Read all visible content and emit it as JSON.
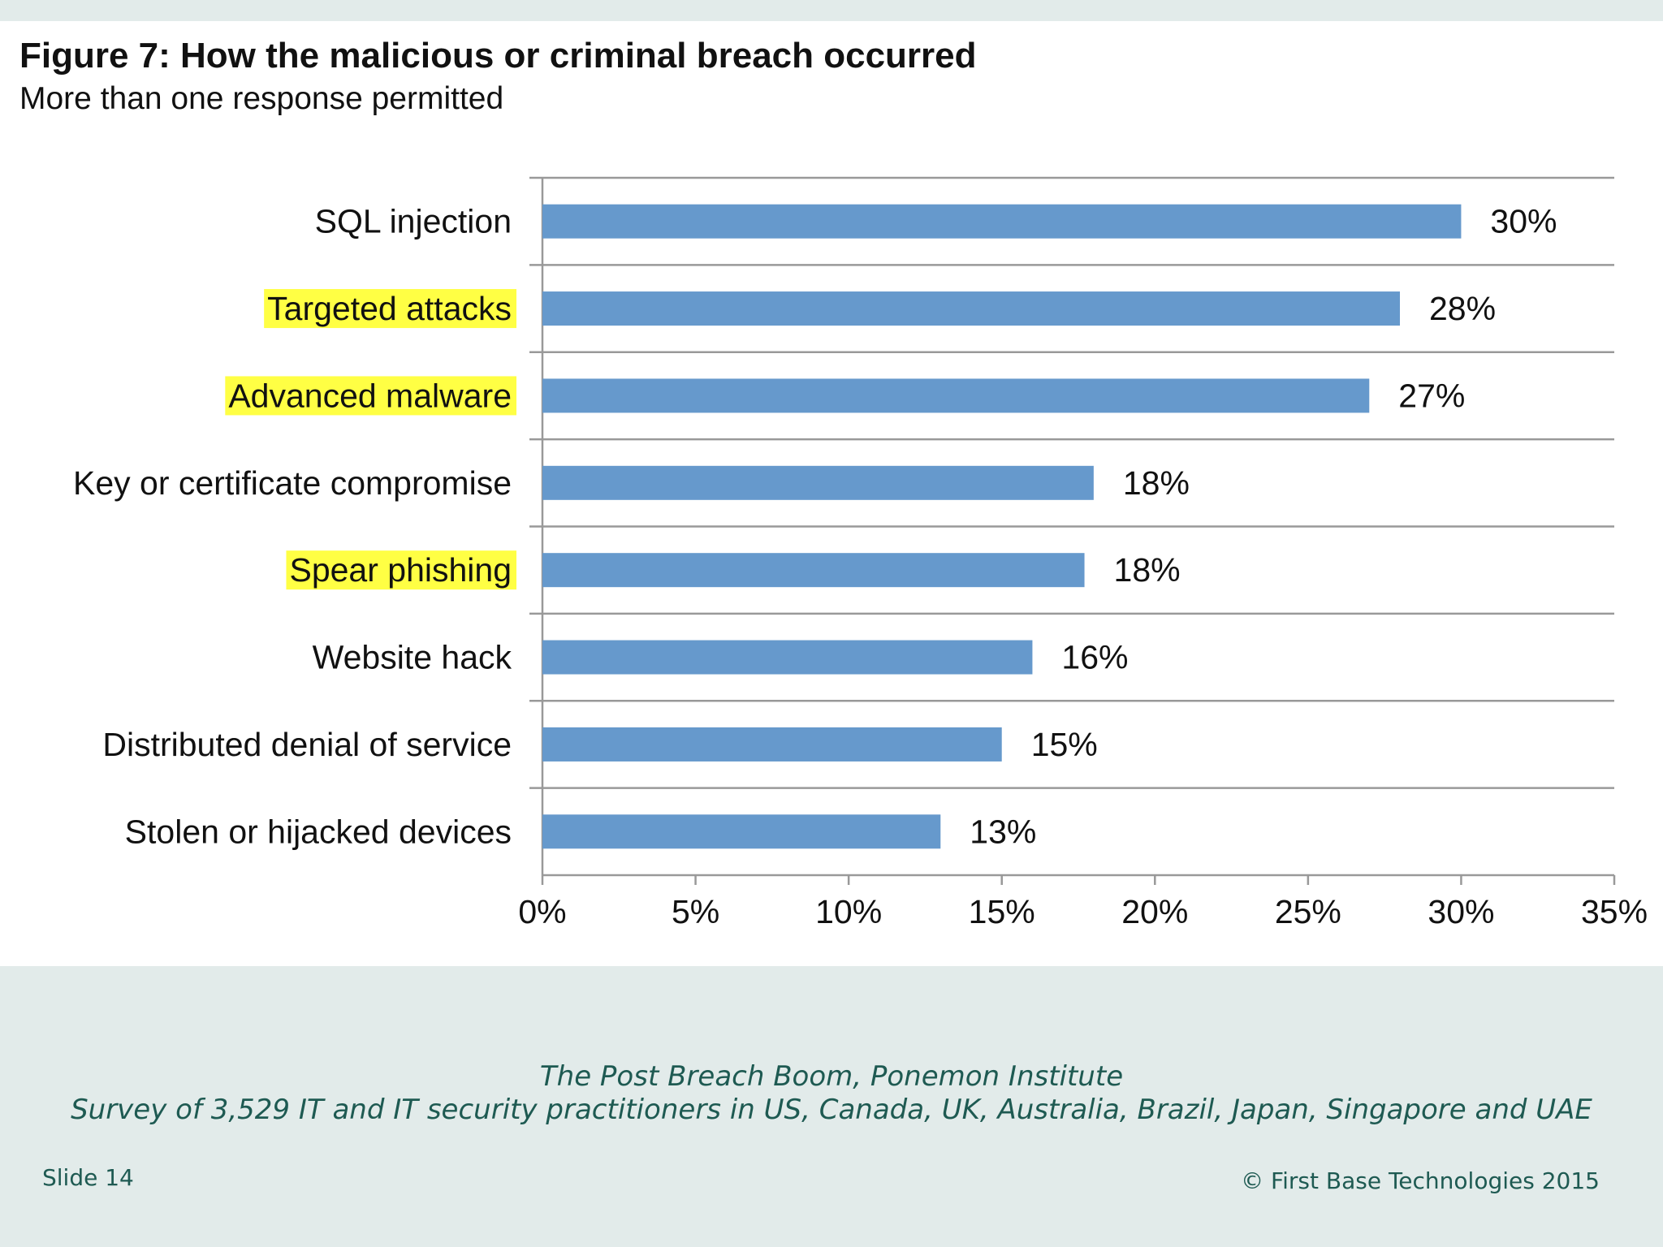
{
  "slide": {
    "title": "Figure 7: How the malicious or criminal breach occurred",
    "subtitle": "More than one response permitted",
    "source_line1": "The Post Breach Boom, Ponemon Institute",
    "source_line2": "Survey of 3,529 IT and IT security practitioners in US, Canada, UK, Australia, Brazil, Japan, Singapore and UAE",
    "slide_number": "Slide 14",
    "copyright": "© First Base Technologies 2015"
  },
  "colors": {
    "bar": "#6699cc",
    "highlight": "#ffff44",
    "gridline": "#999999",
    "footer_text": "#1e5a52",
    "background": "#e2ebea"
  },
  "chart_data": {
    "type": "bar",
    "orientation": "horizontal",
    "title": "Figure 7: How the malicious or criminal breach occurred",
    "subtitle": "More than one response permitted",
    "categories": [
      "SQL injection",
      "Targeted attacks",
      "Advanced malware",
      "Key or certificate compromise",
      "Spear phishing",
      "Website hack",
      "Distributed denial of service",
      "Stolen or hijacked devices"
    ],
    "values": [
      30,
      28,
      27,
      18,
      17.7,
      16,
      15,
      13
    ],
    "value_labels": [
      "30%",
      "28%",
      "27%",
      "18%",
      "18%",
      "16%",
      "15%",
      "13%"
    ],
    "highlighted": [
      false,
      true,
      true,
      false,
      true,
      false,
      false,
      false
    ],
    "x_ticks": [
      "0%",
      "5%",
      "10%",
      "15%",
      "20%",
      "25%",
      "30%",
      "35%"
    ],
    "xlim": [
      0,
      35
    ],
    "xlabel": "",
    "ylabel": "",
    "grid": true,
    "legend": "none"
  }
}
